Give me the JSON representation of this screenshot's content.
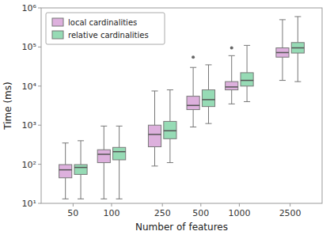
{
  "chart_data": {
    "type": "boxplot",
    "categories": [
      50,
      100,
      250,
      500,
      1000,
      2500
    ],
    "series": [
      {
        "name": "local cardinalities",
        "color": "#ddb0dd",
        "whislo": [
          13,
          13,
          90,
          900,
          3500,
          14000
        ],
        "q1": [
          45,
          110,
          280,
          2500,
          8000,
          55000
        ],
        "med": [
          72,
          180,
          580,
          3200,
          9500,
          72000
        ],
        "q3": [
          98,
          235,
          1000,
          5500,
          13000,
          95000
        ],
        "whishi": [
          350,
          950,
          7500,
          30000,
          60000,
          500000
        ],
        "fliers": [
          null,
          null,
          null,
          55000,
          95000,
          null
        ]
      },
      {
        "name": "relative cardinalities",
        "color": "#96dbb5",
        "whislo": [
          13,
          13,
          110,
          1100,
          4000,
          13000
        ],
        "q1": [
          55,
          130,
          450,
          3000,
          10000,
          70000
        ],
        "med": [
          83,
          210,
          720,
          4500,
          14000,
          95000
        ],
        "q3": [
          98,
          270,
          1250,
          8000,
          22000,
          130000
        ],
        "whishi": [
          400,
          950,
          8000,
          35000,
          110000,
          600000
        ],
        "fliers": [
          null,
          null,
          null,
          null,
          null,
          null
        ]
      }
    ],
    "xlabel": "Number of features",
    "ylabel": "Time (ms)",
    "log": "y",
    "ylim": [
      10,
      1000000
    ],
    "yticks": [
      {
        "value": 10,
        "label": "10¹"
      },
      {
        "value": 100,
        "label": "10²"
      },
      {
        "value": 1000,
        "label": "10³"
      },
      {
        "value": 10000,
        "label": "10⁴"
      },
      {
        "value": 100000,
        "label": "10⁵"
      },
      {
        "value": 1000000,
        "label": "10⁶"
      }
    ],
    "grid": false,
    "legend": "upper-left"
  }
}
